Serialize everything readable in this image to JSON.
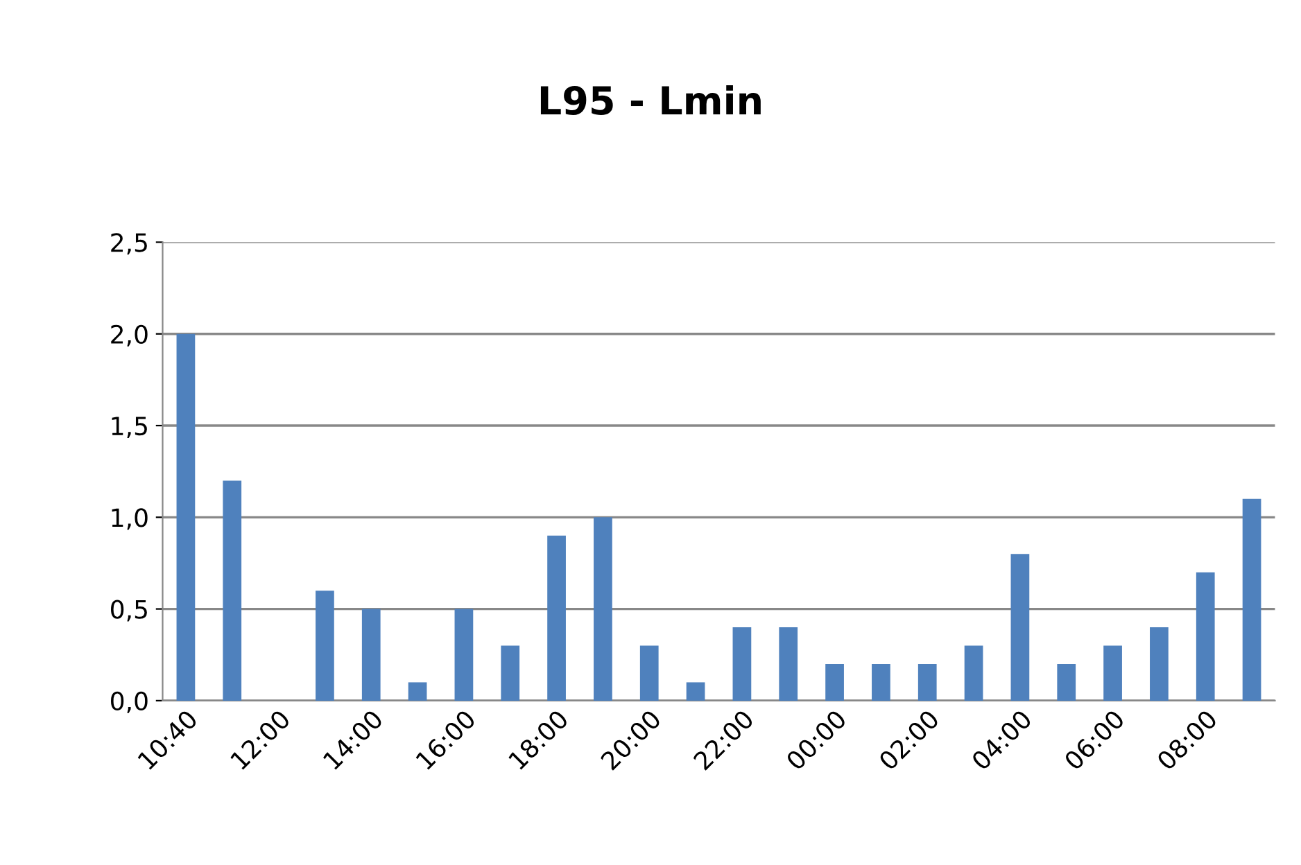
{
  "chart_data": {
    "type": "bar",
    "title": "L95 - Lmin",
    "categories": [
      "10:40",
      null,
      "12:00",
      null,
      "14:00",
      null,
      "16:00",
      null,
      "18:00",
      null,
      "20:00",
      null,
      "22:00",
      null,
      "00:00",
      null,
      "02:00",
      null,
      "04:00",
      null,
      "06:00",
      null,
      "08:00",
      null
    ],
    "values": [
      2.0,
      1.2,
      0,
      0.6,
      0.5,
      0.1,
      0.5,
      0.3,
      0.9,
      1.0,
      0.3,
      0.1,
      0.4,
      0.4,
      0.2,
      0.2,
      0.2,
      0.3,
      0.8,
      0.2,
      0.3,
      0.4,
      0.7,
      1.1
    ],
    "color": "#4f81bd",
    "ylim": [
      0,
      2.5
    ],
    "yticks": [
      {
        "value": 0,
        "label": "0,0"
      },
      {
        "value": 0.5,
        "label": "0,5"
      },
      {
        "value": 1.0,
        "label": "1,0"
      },
      {
        "value": 1.5,
        "label": "1,5"
      },
      {
        "value": 2.0,
        "label": "2,0"
      },
      {
        "value": 2.5,
        "label": "2,5"
      }
    ],
    "grid": "y",
    "legend": false
  }
}
